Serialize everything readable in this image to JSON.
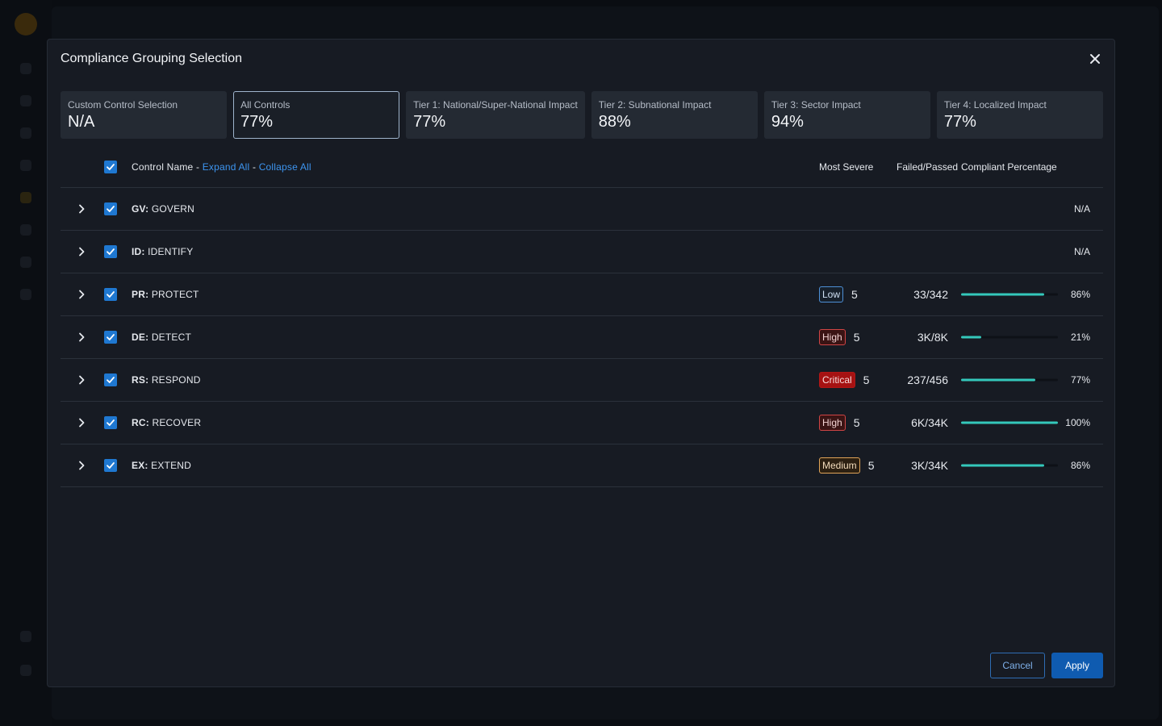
{
  "modal": {
    "title": "Compliance Grouping Selection",
    "cancel_label": "Cancel",
    "apply_label": "Apply"
  },
  "cards": [
    {
      "label": "Custom Control Selection",
      "value": "N/A",
      "selected": false
    },
    {
      "label": "All Controls",
      "value": "77%",
      "selected": true
    },
    {
      "label": "Tier 1: National/Super-National Impact",
      "value": "77%",
      "selected": false
    },
    {
      "label": "Tier 2: Subnational Impact",
      "value": "88%",
      "selected": false
    },
    {
      "label": "Tier 3: Sector Impact",
      "value": "94%",
      "selected": false
    },
    {
      "label": "Tier 4: Localized Impact",
      "value": "77%",
      "selected": false
    }
  ],
  "table": {
    "header": {
      "control_name": "Control Name - ",
      "expand_all": "Expand All",
      "separator": " - ",
      "collapse_all": "Collapse All",
      "most_severe": "Most Severe",
      "failed_passed": "Failed/Passed",
      "compliant_percentage": "Compliant Percentage"
    },
    "rows": [
      {
        "code": "GV:",
        "name": " GOVERN",
        "severity": "",
        "severity_count": "",
        "failed": "",
        "percent": 0,
        "percent_label": "N/A"
      },
      {
        "code": "ID:",
        "name": " IDENTIFY",
        "severity": "",
        "severity_count": "",
        "failed": "",
        "percent": 0,
        "percent_label": "N/A"
      },
      {
        "code": "PR:",
        "name": " PROTECT",
        "severity": "Low",
        "severity_count": "5",
        "failed": "33/342",
        "percent": 86,
        "percent_label": "86%"
      },
      {
        "code": "DE:",
        "name": " DETECT",
        "severity": "High",
        "severity_count": "5",
        "failed": "3K/8K",
        "percent": 21,
        "percent_label": "21%"
      },
      {
        "code": "RS:",
        "name": " RESPOND",
        "severity": "Critical",
        "severity_count": "5",
        "failed": "237/456",
        "percent": 77,
        "percent_label": "77%"
      },
      {
        "code": "RC:",
        "name": " RECOVER",
        "severity": "High",
        "severity_count": "5",
        "failed": "6K/34K",
        "percent": 100,
        "percent_label": "100%"
      },
      {
        "code": "EX:",
        "name": " EXTEND",
        "severity": "Medium",
        "severity_count": "5",
        "failed": "3K/34K",
        "percent": 86,
        "percent_label": "86%"
      }
    ]
  },
  "colors": {
    "accent": "#1f78d1",
    "progress": "#34c8bb",
    "link": "#3d95f0"
  }
}
